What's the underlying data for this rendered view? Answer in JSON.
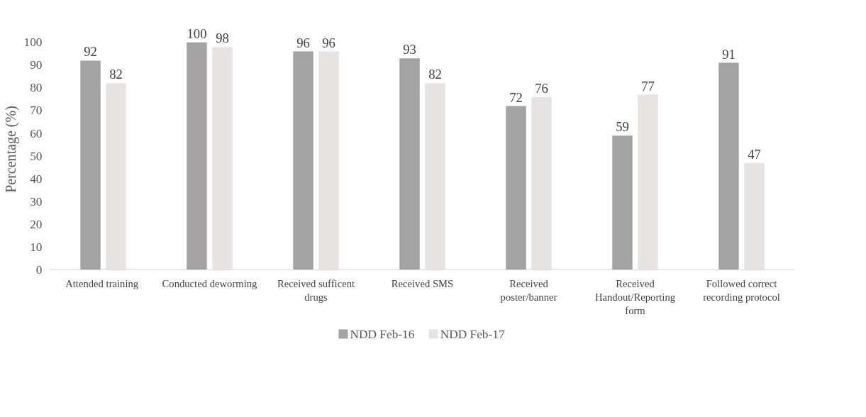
{
  "chart_data": {
    "type": "bar",
    "ylabel": "Percentage (%)",
    "categories": [
      "Attended  training",
      "Conducted deworming",
      "Received sufficent drugs",
      "Received SMS",
      "Received poster/banner",
      "Received Handout/Reporting form",
      "Followed correct recording protocol"
    ],
    "series": [
      {
        "name": "NDD Feb-16",
        "color": "#a5a2a2",
        "values": [
          92,
          100,
          96,
          93,
          72,
          59,
          91
        ]
      },
      {
        "name": "NDD Feb-17",
        "color": "#e7e3e0",
        "values": [
          82,
          98,
          96,
          82,
          76,
          77,
          47
        ]
      }
    ],
    "ylim": [
      0,
      100
    ],
    "yticks": [
      0,
      10,
      20,
      30,
      40,
      50,
      60,
      70,
      80,
      90,
      100
    ],
    "data_labels": true,
    "grid": false,
    "legend": "bottom"
  }
}
